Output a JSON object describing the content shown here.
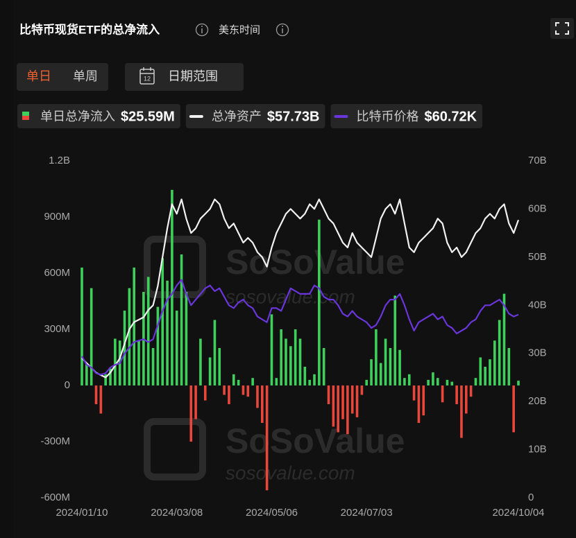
{
  "header": {
    "title": "比特币现货ETF的总净流入",
    "timezone": "美东时间"
  },
  "controls": {
    "daily": "单日",
    "weekly": "单周",
    "date_range": "日期范围",
    "calendar_day": "12"
  },
  "watermark": {
    "brand": "SoSoValue",
    "url": "sosovalue.com"
  },
  "chart_data": {
    "type": "combo",
    "categories": [
      "2024/01/10",
      null,
      null,
      null,
      null,
      null,
      null,
      null,
      null,
      null,
      null,
      null,
      null,
      null,
      null,
      null,
      null,
      null,
      null,
      null,
      "2024/03/08",
      null,
      null,
      null,
      null,
      null,
      null,
      null,
      null,
      null,
      null,
      null,
      null,
      null,
      null,
      null,
      null,
      null,
      null,
      null,
      "2024/05/06",
      null,
      null,
      null,
      null,
      null,
      null,
      null,
      null,
      null,
      null,
      null,
      null,
      null,
      null,
      null,
      null,
      null,
      null,
      null,
      "2024/07/03",
      null,
      null,
      null,
      null,
      null,
      null,
      null,
      null,
      null,
      null,
      null,
      null,
      null,
      null,
      null,
      null,
      null,
      null,
      null,
      null,
      null,
      null,
      null,
      null,
      null,
      null,
      null,
      null,
      null,
      null,
      null,
      "2024/10/04"
    ],
    "ylim": [
      -600,
      1200
    ],
    "yticks": [
      {
        "value": -600,
        "label": "-600M"
      },
      {
        "value": -300,
        "label": "-300M"
      },
      0,
      {
        "value": 300,
        "label": "300M"
      },
      {
        "value": 600,
        "label": "600M"
      },
      {
        "value": 900,
        "label": "900M"
      },
      {
        "value": 1200,
        "label": "1.2B"
      }
    ],
    "y2lim": [
      0,
      70
    ],
    "y2ticks": [
      0,
      {
        "value": 10,
        "label": "10B"
      },
      {
        "value": 20,
        "label": "20B"
      },
      {
        "value": 30,
        "label": "30B"
      },
      {
        "value": 40,
        "label": "40B"
      },
      {
        "value": 50,
        "label": "50B"
      },
      {
        "value": 60,
        "label": "60B"
      },
      {
        "value": 70,
        "label": "70B"
      }
    ],
    "y3lim": [
      -4,
      115
    ],
    "grid": false,
    "series": [
      {
        "name": "单日总净流入",
        "legend_value": "$25.59M",
        "type": "bar",
        "color": "#3fcf5b",
        "negative_color": "#e9473b",
        "values": [
          630,
          120,
          520,
          -100,
          -150,
          60,
          90,
          250,
          240,
          400,
          520,
          630,
          240,
          500,
          580,
          200,
          420,
          680,
          560,
          1045,
          400,
          700,
          500,
          -300,
          -180,
          250,
          -80,
          150,
          350,
          200,
          -50,
          -100,
          60,
          30,
          -50,
          -60,
          40,
          -120,
          -200,
          -560,
          380,
          40,
          300,
          250,
          210,
          300,
          250,
          100,
          30,
          60,
          886,
          200,
          -100,
          -220,
          -250,
          -180,
          -260,
          -150,
          -170,
          -50,
          30,
          140,
          300,
          120,
          250,
          200,
          480,
          190,
          40,
          60,
          -80,
          -200,
          -160,
          30,
          70,
          40,
          -90,
          30,
          20,
          -100,
          -280,
          -150,
          -60,
          40,
          150,
          100,
          140,
          240,
          350,
          490,
          200,
          -250,
          25.59
        ]
      },
      {
        "name": "总净资产",
        "legend_value": "$57.73B",
        "type": "line",
        "axis": "y2",
        "color": "#f2f2f2",
        "values": [
          29,
          28,
          27,
          26,
          25.5,
          25,
          26,
          27.5,
          29,
          32,
          35,
          36.5,
          37,
          37.5,
          39,
          40,
          44,
          50,
          56,
          61,
          59,
          62,
          58,
          55,
          56,
          58,
          59,
          60,
          62,
          61,
          58,
          56,
          57,
          55,
          53,
          54,
          53,
          51,
          50,
          48,
          52,
          55,
          57,
          59,
          60,
          59,
          58,
          59,
          61,
          60,
          62,
          60,
          58,
          57,
          55,
          53,
          52,
          55,
          53,
          52,
          51,
          50,
          54,
          58,
          60,
          61,
          59,
          62,
          57,
          52,
          51,
          53,
          54,
          55,
          56,
          58,
          57,
          53,
          51,
          52,
          50,
          51,
          53,
          55,
          56,
          58,
          59,
          58,
          60,
          61,
          57,
          55,
          57.73
        ]
      },
      {
        "name": "比特币价格",
        "legend_value": "$60.72K",
        "type": "line",
        "axis": "y3",
        "color": "#6a36dc",
        "values": [
          46,
          43,
          42,
          40,
          39.5,
          40,
          42,
          43,
          43.5,
          47,
          49,
          51,
          51.5,
          52,
          51,
          52,
          57,
          62,
          66,
          68,
          71,
          73,
          68,
          64,
          66,
          68,
          70,
          71,
          69,
          70,
          67,
          64,
          63,
          65,
          66,
          64,
          63,
          60,
          59,
          58,
          63,
          63,
          62,
          66,
          70,
          69,
          68,
          68,
          68,
          71,
          70,
          67,
          66,
          66,
          64,
          61,
          60,
          62,
          60,
          59,
          58,
          56,
          57,
          60,
          64,
          66,
          66,
          68,
          64,
          59,
          55,
          58,
          59,
          60,
          61,
          59,
          60,
          57,
          56,
          54,
          55,
          56,
          58,
          59,
          62,
          64,
          64,
          65,
          66,
          64,
          61,
          60,
          60.72
        ]
      }
    ]
  }
}
